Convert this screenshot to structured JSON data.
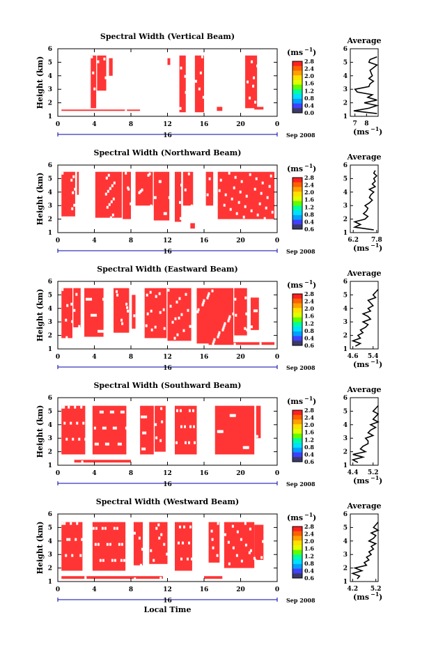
{
  "figure": {
    "xlabel": "Local Time",
    "date_label": "Sep 2008",
    "date_day": "16",
    "ylabel": "Height (km)",
    "unit": "(ms",
    "unit_exp": "−1",
    "average_title": "Average",
    "colorbar_ticks": [
      "0.0",
      "0.4",
      "0.8",
      "1.2",
      "1.6",
      "2.0",
      "2.4",
      "2.8"
    ],
    "colors": {
      "high": "#ff3535",
      "axis": "#000000",
      "date_bar": "#0000aa",
      "colorbar": [
        "#3a3a6a",
        "#4040ff",
        "#00a0ff",
        "#00e0ff",
        "#00ffa0",
        "#60ff00",
        "#e0ff00",
        "#ffe000",
        "#ffa000",
        "#ff6000",
        "#ff2020"
      ]
    }
  },
  "chart_data": [
    {
      "type": "heatmap",
      "title": "Spectral Width (Vertical Beam)",
      "x_ticks": [
        "0",
        "4",
        "8",
        "12",
        "16",
        "20",
        "0"
      ],
      "xlim": [
        0,
        24
      ],
      "y_ticks": [
        "1",
        "2",
        "3",
        "4",
        "5",
        "6"
      ],
      "ylim": [
        1,
        6
      ],
      "colorbar_range": [
        0.0,
        2.8
      ],
      "blocks": [
        {
          "x": [
            3.6,
            4.2
          ],
          "y": [
            1.6,
            5.5
          ]
        },
        {
          "x": [
            4.3,
            5.3
          ],
          "y": [
            2.9,
            5.5
          ]
        },
        {
          "x": [
            5.6,
            6.0
          ],
          "y": [
            4.0,
            5.3
          ]
        },
        {
          "x": [
            12.0,
            12.3
          ],
          "y": [
            4.8,
            5.3
          ]
        },
        {
          "x": [
            13.3,
            14.0
          ],
          "y": [
            1.3,
            5.5
          ]
        },
        {
          "x": [
            15.0,
            16.0
          ],
          "y": [
            1.3,
            5.5
          ]
        },
        {
          "x": [
            20.5,
            21.8
          ],
          "y": [
            1.6,
            5.5
          ]
        },
        {
          "x": [
            0.4,
            9.0
          ],
          "y": [
            1.4,
            1.5
          ]
        },
        {
          "x": [
            17.4,
            18.0
          ],
          "y": [
            1.4,
            1.7
          ]
        },
        {
          "x": [
            21.5,
            22.5
          ],
          "y": [
            1.5,
            1.7
          ]
        }
      ],
      "average": {
        "xlim": [
          6.6,
          9.0
        ],
        "x_ticks": [
          "7",
          "8"
        ],
        "x_tick_values": [
          7,
          8
        ],
        "height": [
          1.2,
          1.4,
          1.6,
          1.8,
          2.0,
          2.2,
          2.4,
          2.6,
          2.8,
          3.0,
          3.2,
          3.4,
          3.6,
          3.8,
          4.0,
          4.2,
          4.4,
          4.6,
          4.8,
          5.0,
          5.2,
          5.4
        ],
        "values": [
          8.9,
          6.9,
          8.2,
          8.9,
          7.8,
          8.9,
          8.1,
          8.5,
          7.2,
          7.0,
          8.2,
          8.3,
          8.6,
          8.2,
          8.5,
          8.4,
          8.3,
          8.6,
          8.9,
          8.2,
          8.3,
          8.9
        ]
      }
    },
    {
      "type": "heatmap",
      "title": "Spectral Width (Northward Beam)",
      "x_ticks": [
        "0",
        "4",
        "8",
        "12",
        "16",
        "20",
        "0"
      ],
      "xlim": [
        0,
        24
      ],
      "y_ticks": [
        "1",
        "2",
        "3",
        "4",
        "5",
        "6"
      ],
      "ylim": [
        1,
        6
      ],
      "colorbar_range": [
        0.6,
        2.8
      ],
      "blocks": [
        {
          "x": [
            0.4,
            1.9
          ],
          "y": [
            2.2,
            5.5
          ]
        },
        {
          "x": [
            2.1,
            2.3
          ],
          "y": [
            3.8,
            5.5
          ]
        },
        {
          "x": [
            4.1,
            7.0
          ],
          "y": [
            2.1,
            5.5
          ]
        },
        {
          "x": [
            7.1,
            8.0
          ],
          "y": [
            2.0,
            5.5
          ]
        },
        {
          "x": [
            8.5,
            10.4
          ],
          "y": [
            3.0,
            5.5
          ]
        },
        {
          "x": [
            10.5,
            12.2
          ],
          "y": [
            1.9,
            5.5
          ]
        },
        {
          "x": [
            12.8,
            13.5
          ],
          "y": [
            1.8,
            5.5
          ]
        },
        {
          "x": [
            13.7,
            14.8
          ],
          "y": [
            3.0,
            5.5
          ]
        },
        {
          "x": [
            16.2,
            17.0
          ],
          "y": [
            3.0,
            5.5
          ]
        },
        {
          "x": [
            17.5,
            23.7
          ],
          "y": [
            2.0,
            5.5
          ]
        },
        {
          "x": [
            14.5,
            15.0
          ],
          "y": [
            1.3,
            1.7
          ]
        }
      ],
      "average": {
        "xlim": [
          6.0,
          7.9
        ],
        "x_ticks": [
          "6.2",
          "7.8"
        ],
        "x_tick_values": [
          6.2,
          7.8
        ],
        "height": [
          1.2,
          1.4,
          1.6,
          1.8,
          2.0,
          2.2,
          2.4,
          2.6,
          2.8,
          3.0,
          3.2,
          3.4,
          3.6,
          3.8,
          4.0,
          4.2,
          4.4,
          4.6,
          4.8,
          5.0,
          5.2,
          5.4,
          5.6
        ],
        "values": [
          7.6,
          6.3,
          6.7,
          6.3,
          7.0,
          7.2,
          6.9,
          7.1,
          7.2,
          7.0,
          7.3,
          7.5,
          7.3,
          7.4,
          7.6,
          7.3,
          7.7,
          7.5,
          7.7,
          7.6,
          7.8,
          7.6,
          7.7
        ]
      }
    },
    {
      "type": "heatmap",
      "title": "Spectral Width (Eastward Beam)",
      "x_ticks": [
        "0",
        "4",
        "8",
        "12",
        "16",
        "20",
        "0"
      ],
      "xlim": [
        0,
        24
      ],
      "y_ticks": [
        "1",
        "2",
        "3",
        "4",
        "5",
        "6"
      ],
      "ylim": [
        1,
        6
      ],
      "colorbar_range": [
        0.6,
        2.8
      ],
      "blocks": [
        {
          "x": [
            0.4,
            1.6
          ],
          "y": [
            1.8,
            5.5
          ]
        },
        {
          "x": [
            1.7,
            2.5
          ],
          "y": [
            2.6,
            5.5
          ]
        },
        {
          "x": [
            2.9,
            5.0
          ],
          "y": [
            1.9,
            5.5
          ]
        },
        {
          "x": [
            6.1,
            7.8
          ],
          "y": [
            2.2,
            5.5
          ]
        },
        {
          "x": [
            8.1,
            8.5
          ],
          "y": [
            2.5,
            5.0
          ]
        },
        {
          "x": [
            9.5,
            11.9
          ],
          "y": [
            1.8,
            5.5
          ]
        },
        {
          "x": [
            12.0,
            14.6
          ],
          "y": [
            1.6,
            5.5
          ]
        },
        {
          "x": [
            15.2,
            19.2
          ],
          "y": [
            1.4,
            5.5
          ]
        },
        {
          "x": [
            19.3,
            20.7
          ],
          "y": [
            2.0,
            5.5
          ]
        },
        {
          "x": [
            21.1,
            22.0
          ],
          "y": [
            2.4,
            4.8
          ]
        },
        {
          "x": [
            16.5,
            23.7
          ],
          "y": [
            1.3,
            1.5
          ]
        }
      ],
      "average": {
        "xlim": [
          4.5,
          5.6
        ],
        "x_ticks": [
          "4.6",
          "5.4"
        ],
        "x_tick_values": [
          4.6,
          5.4
        ],
        "height": [
          1.2,
          1.4,
          1.6,
          1.8,
          2.0,
          2.2,
          2.4,
          2.6,
          2.8,
          3.0,
          3.2,
          3.4,
          3.6,
          3.8,
          4.0,
          4.2,
          4.4,
          4.6,
          4.8,
          5.0,
          5.2,
          5.4
        ],
        "values": [
          4.7,
          4.9,
          4.6,
          4.9,
          4.8,
          5.0,
          4.9,
          5.1,
          5.2,
          5.0,
          5.3,
          5.2,
          5.0,
          5.3,
          5.2,
          5.4,
          5.3,
          5.2,
          5.5,
          5.4,
          5.5,
          5.6
        ]
      }
    },
    {
      "type": "heatmap",
      "title": "Spectral Width (Southward Beam)",
      "x_ticks": [
        "0",
        "4",
        "8",
        "12",
        "16",
        "20",
        "0"
      ],
      "xlim": [
        0,
        24
      ],
      "y_ticks": [
        "1",
        "2",
        "3",
        "4",
        "5",
        "6"
      ],
      "ylim": [
        1,
        6
      ],
      "colorbar_range": [
        0.6,
        2.8
      ],
      "blocks": [
        {
          "x": [
            0.4,
            3.0
          ],
          "y": [
            1.8,
            5.4
          ]
        },
        {
          "x": [
            3.8,
            7.5
          ],
          "y": [
            1.8,
            5.4
          ]
        },
        {
          "x": [
            9.0,
            10.5
          ],
          "y": [
            1.8,
            5.4
          ]
        },
        {
          "x": [
            10.6,
            11.8
          ],
          "y": [
            2.0,
            5.4
          ]
        },
        {
          "x": [
            12.8,
            15.2
          ],
          "y": [
            1.8,
            5.4
          ]
        },
        {
          "x": [
            17.2,
            21.5
          ],
          "y": [
            1.8,
            5.4
          ]
        },
        {
          "x": [
            21.7,
            22.2
          ],
          "y": [
            3.0,
            5.4
          ]
        },
        {
          "x": [
            1.8,
            8.0
          ],
          "y": [
            1.2,
            1.4
          ]
        }
      ],
      "average": {
        "xlim": [
          4.3,
          5.4
        ],
        "x_ticks": [
          "4.4",
          "5.2"
        ],
        "x_tick_values": [
          4.4,
          5.2
        ],
        "height": [
          1.2,
          1.4,
          1.6,
          1.8,
          2.0,
          2.2,
          2.4,
          2.6,
          2.8,
          3.0,
          3.2,
          3.4,
          3.6,
          3.8,
          4.0,
          4.2,
          4.4,
          4.6,
          4.8,
          5.0,
          5.2,
          5.4
        ],
        "values": [
          4.6,
          4.4,
          4.8,
          4.4,
          4.9,
          4.7,
          4.8,
          5.0,
          5.0,
          4.9,
          5.2,
          5.0,
          5.1,
          5.3,
          5.1,
          5.4,
          5.2,
          5.3,
          5.4,
          5.2,
          5.3,
          5.4
        ]
      }
    },
    {
      "type": "heatmap",
      "title": "Spectral Width (Westward Beam)",
      "x_ticks": [
        "0",
        "4",
        "8",
        "12",
        "16",
        "20",
        "0"
      ],
      "xlim": [
        0,
        24
      ],
      "y_ticks": [
        "1",
        "2",
        "3",
        "4",
        "5",
        "6"
      ],
      "ylim": [
        1,
        6
      ],
      "colorbar_range": [
        0.6,
        2.8
      ],
      "blocks": [
        {
          "x": [
            0.4,
            2.7
          ],
          "y": [
            1.8,
            5.4
          ]
        },
        {
          "x": [
            3.8,
            7.4
          ],
          "y": [
            1.8,
            5.4
          ]
        },
        {
          "x": [
            8.3,
            9.3
          ],
          "y": [
            2.2,
            5.4
          ]
        },
        {
          "x": [
            10.0,
            12.0
          ],
          "y": [
            2.3,
            5.4
          ]
        },
        {
          "x": [
            12.8,
            14.7
          ],
          "y": [
            1.8,
            5.4
          ]
        },
        {
          "x": [
            16.5,
            17.7
          ],
          "y": [
            2.4,
            5.4
          ]
        },
        {
          "x": [
            18.2,
            21.5
          ],
          "y": [
            2.0,
            5.4
          ]
        },
        {
          "x": [
            21.5,
            22.5
          ],
          "y": [
            2.6,
            5.2
          ]
        },
        {
          "x": [
            0.4,
            11.5
          ],
          "y": [
            1.2,
            1.4
          ]
        },
        {
          "x": [
            16.0,
            18.0
          ],
          "y": [
            1.2,
            1.4
          ]
        }
      ],
      "average": {
        "xlim": [
          4.1,
          5.3
        ],
        "x_ticks": [
          "4.2",
          "5.2"
        ],
        "x_tick_values": [
          4.2,
          5.2
        ],
        "height": [
          1.2,
          1.4,
          1.6,
          1.8,
          2.0,
          2.2,
          2.4,
          2.6,
          2.8,
          3.0,
          3.2,
          3.4,
          3.6,
          3.8,
          4.0,
          4.2,
          4.4,
          4.6,
          4.8,
          5.0,
          5.2,
          5.4
        ],
        "values": [
          4.4,
          4.5,
          4.2,
          4.6,
          4.3,
          4.8,
          4.7,
          4.9,
          4.8,
          5.0,
          4.9,
          5.1,
          5.0,
          5.2,
          4.9,
          5.1,
          5.2,
          5.0,
          5.3,
          5.1,
          5.2,
          5.3
        ]
      }
    }
  ]
}
